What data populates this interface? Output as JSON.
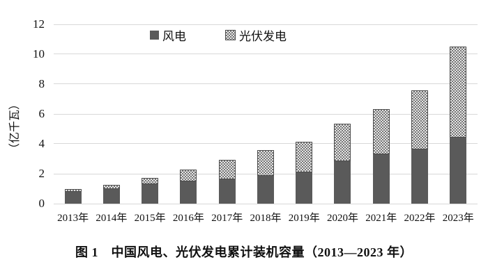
{
  "chart_data": {
    "type": "bar",
    "stacked": true,
    "title": "",
    "caption": "图 1　中国风电、光伏发电累计装机容量（2013—2023 年）",
    "xlabel": "",
    "ylabel": "（亿千瓦）",
    "ylim": [
      0,
      12
    ],
    "yticks": [
      0,
      2,
      4,
      6,
      8,
      10,
      12
    ],
    "grid": true,
    "legend_position": "top-center",
    "categories": [
      "2013年",
      "2014年",
      "2015年",
      "2016年",
      "2017年",
      "2018年",
      "2019年",
      "2020年",
      "2021年",
      "2022年",
      "2023年"
    ],
    "series": [
      {
        "name": "风电",
        "values": [
          0.77,
          0.96,
          1.3,
          1.49,
          1.64,
          1.84,
          2.1,
          2.82,
          3.28,
          3.65,
          4.41
        ]
      },
      {
        "name": "光伏发电",
        "values": [
          0.19,
          0.28,
          0.43,
          0.77,
          1.3,
          1.74,
          2.04,
          2.53,
          3.06,
          3.93,
          6.09
        ]
      }
    ],
    "totals": [
      0.96,
      1.24,
      1.73,
      2.26,
      2.94,
      3.58,
      4.14,
      5.35,
      6.34,
      7.58,
      10.5
    ]
  },
  "colors": {
    "wind": "#5a5a5a",
    "solar_background": "#e6e6e6",
    "solar_dot": "#767676",
    "solar_border": "#4b4b4b",
    "gridline": "#d8d8d8",
    "text": "#111111"
  }
}
